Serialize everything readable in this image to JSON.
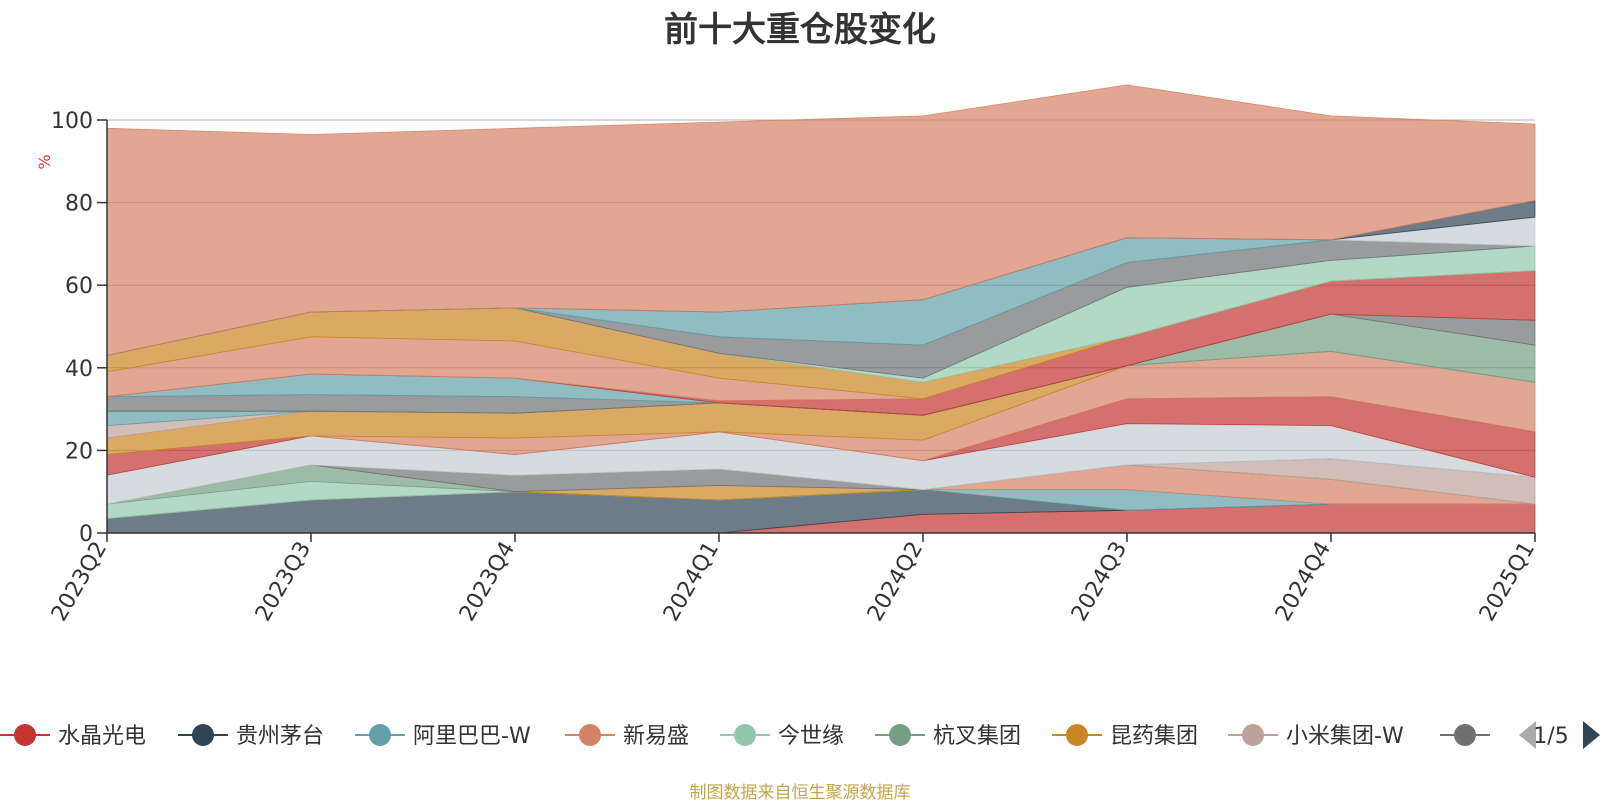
{
  "title": "前十大重仓股变化",
  "source": "制图数据来自恒生聚源数据库",
  "chart_data": {
    "type": "area",
    "stacked": true,
    "ylabel": "%",
    "ylim": [
      0,
      100
    ],
    "yticks": [
      0,
      20,
      40,
      60,
      80,
      100
    ],
    "categories": [
      "2023Q2",
      "2023Q3",
      "2023Q4",
      "2024Q1",
      "2024Q2",
      "2024Q3",
      "2024Q4",
      "2025Q1"
    ],
    "grid": true,
    "legend_position": "bottom",
    "legend_page": "1/5",
    "series": [
      {
        "name": "水晶光电",
        "color": "#c23531",
        "legend": true,
        "values": [
          0,
          0,
          0,
          0,
          4.5,
          5.5,
          7,
          7
        ]
      },
      {
        "name": "贵州茅台",
        "color": "#2f4554",
        "legend": true,
        "values": [
          3.5,
          8,
          10,
          8,
          6,
          0,
          0,
          0
        ]
      },
      {
        "name": "阿里巴巴-W",
        "color": "#61a0a8",
        "legend": true,
        "values": [
          0,
          0,
          0,
          0,
          0,
          5,
          0,
          0
        ]
      },
      {
        "name": "新易盛",
        "color": "#d48265",
        "legend": true,
        "values": [
          0,
          0,
          0,
          0,
          0,
          6,
          6,
          0
        ]
      },
      {
        "name": "今世缘",
        "color": "#91c7ae",
        "legend": true,
        "values": [
          3.5,
          4.5,
          0,
          0,
          0,
          0,
          0,
          0
        ]
      },
      {
        "name": "杭叉集团",
        "color": "#749f83",
        "legend": true,
        "values": [
          0,
          4,
          0,
          0,
          0,
          0,
          0,
          0
        ]
      },
      {
        "name": "昆药集团",
        "color": "#ca8622",
        "legend": true,
        "values": [
          0,
          0,
          0,
          3.5,
          0,
          0,
          0,
          0
        ]
      },
      {
        "name": "小米集团-W",
        "color": "#bda29a",
        "legend": true,
        "values": [
          0,
          0,
          0,
          0,
          0,
          0,
          5,
          6.5
        ]
      },
      {
        "name": "",
        "color": "#6e7074",
        "legend": true,
        "values": [
          0,
          0,
          4,
          4,
          0,
          0,
          0,
          0
        ]
      },
      {
        "name": "",
        "color": "#c4ccd3",
        "legend": false,
        "values": [
          7,
          7,
          5,
          9,
          7,
          10,
          8,
          0
        ]
      },
      {
        "name": "",
        "color": "#c23531",
        "legend": false,
        "values": [
          5,
          0,
          0,
          0,
          0,
          6,
          7,
          11
        ]
      },
      {
        "name": "",
        "color": "#d48265",
        "legend": false,
        "values": [
          0,
          0,
          4,
          0,
          5,
          8,
          11,
          12
        ]
      },
      {
        "name": "",
        "color": "#ca8622",
        "legend": false,
        "values": [
          4,
          6,
          6,
          7,
          6,
          0,
          0,
          0
        ]
      },
      {
        "name": "",
        "color": "#bda29a",
        "legend": false,
        "values": [
          3,
          0,
          0,
          0,
          0,
          0,
          0,
          0
        ]
      },
      {
        "name": "",
        "color": "#61a0a8",
        "legend": false,
        "values": [
          3.5,
          0,
          0,
          0,
          0,
          0,
          0,
          0
        ]
      },
      {
        "name": "",
        "color": "#749f83",
        "legend": false,
        "values": [
          0,
          0,
          0,
          0,
          0,
          0,
          9,
          9
        ]
      },
      {
        "name": "",
        "color": "#6e7074",
        "legend": false,
        "values": [
          3.5,
          4,
          4,
          0,
          0,
          0,
          0,
          6
        ]
      },
      {
        "name": "",
        "color": "#61a0a8",
        "legend": false,
        "values": [
          0,
          5,
          4.5,
          0,
          0,
          0,
          0,
          0
        ]
      },
      {
        "name": "",
        "color": "#c23531",
        "legend": false,
        "values": [
          0,
          0,
          0,
          0.5,
          4,
          7,
          8,
          12
        ]
      },
      {
        "name": "",
        "color": "#d48265",
        "legend": false,
        "values": [
          6,
          9,
          9,
          5.5,
          0,
          0,
          0,
          0
        ]
      },
      {
        "name": "",
        "color": "#ca8622",
        "legend": false,
        "values": [
          4,
          6,
          8,
          6,
          4,
          0,
          0,
          0
        ]
      },
      {
        "name": "",
        "color": "#91c7ae",
        "legend": false,
        "values": [
          0,
          0,
          0,
          0,
          1,
          12,
          5,
          6
        ]
      },
      {
        "name": "",
        "color": "#6e7074",
        "legend": false,
        "values": [
          0,
          0,
          0,
          4,
          8,
          6,
          5,
          0
        ]
      },
      {
        "name": "",
        "color": "#61a0a8",
        "legend": false,
        "values": [
          0,
          0,
          0,
          6,
          11,
          6,
          0,
          0
        ]
      },
      {
        "name": "",
        "color": "#c4ccd3",
        "legend": false,
        "values": [
          0,
          0,
          0,
          0,
          0,
          0,
          0,
          7
        ]
      },
      {
        "name": "",
        "color": "#2f4554",
        "legend": false,
        "values": [
          0,
          0,
          0,
          0,
          0,
          0,
          0,
          4
        ]
      },
      {
        "name": "",
        "color": "#d48265",
        "legend": false,
        "values": [
          55,
          43,
          43.5,
          46,
          44.5,
          37,
          30,
          18.5
        ]
      }
    ]
  }
}
